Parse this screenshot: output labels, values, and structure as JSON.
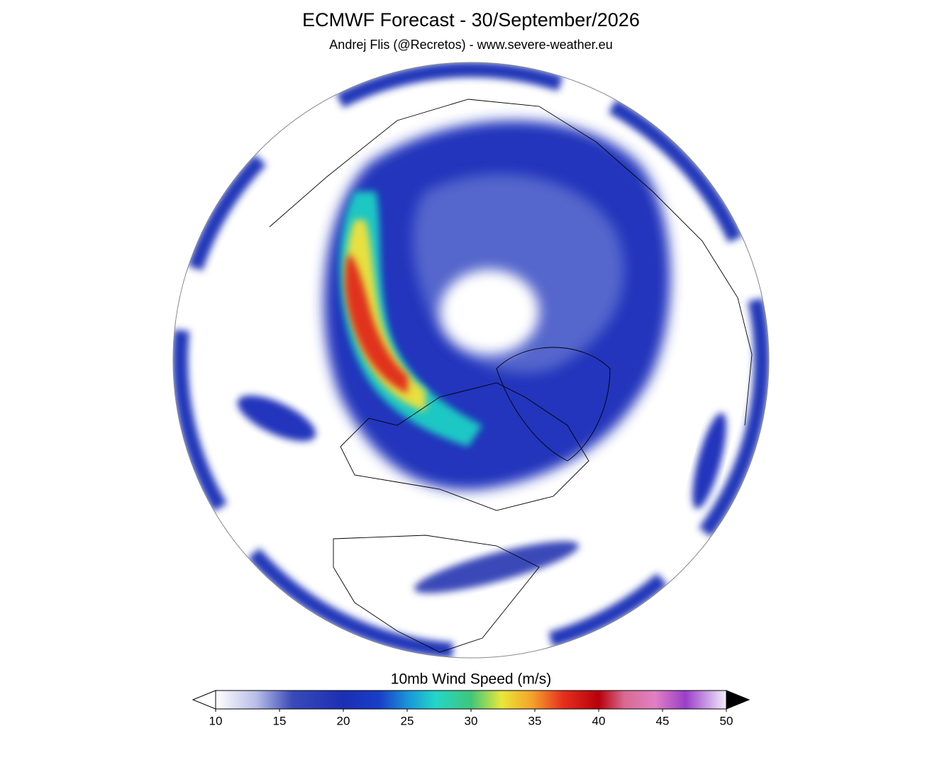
{
  "header": {
    "title": "ECMWF Forecast - 30/September/2026",
    "subtitle": "Andrej Flis (@Recretos) - www.severe-weather.eu"
  },
  "colorbar": {
    "label": "10mb Wind Speed (m/s)",
    "range": [
      10,
      50
    ],
    "ticks": [
      10,
      15,
      20,
      25,
      30,
      35,
      40,
      45,
      50
    ]
  }
}
